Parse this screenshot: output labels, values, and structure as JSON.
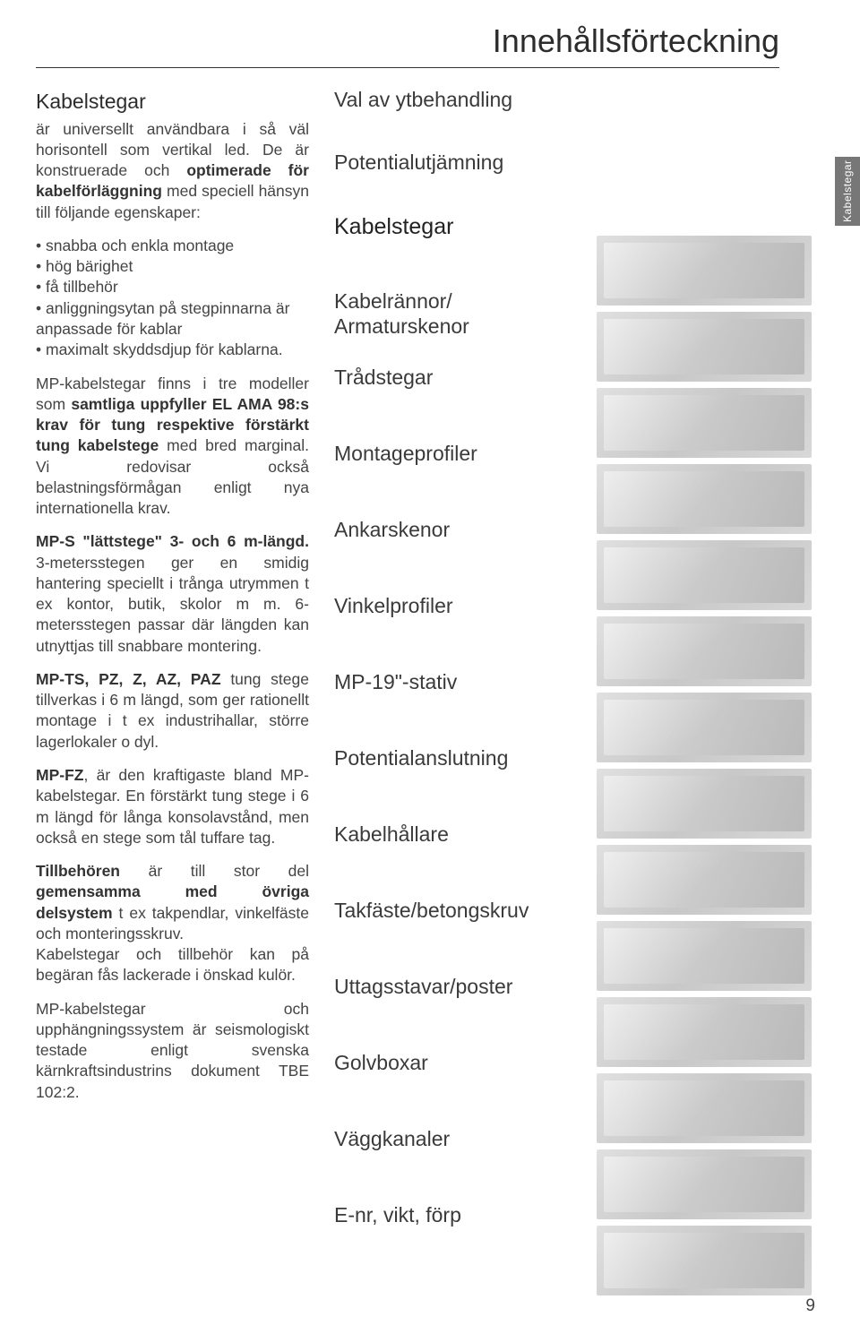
{
  "page": {
    "title": "Innehållsförteckning",
    "page_number": "9",
    "side_tab": "Kabelstegar"
  },
  "left": {
    "heading": "Kabelstegar",
    "intro_a": "är universellt användbara i så väl horisontell som vertikal led. De är konstruerade och ",
    "intro_bold1": "optimerade för kabelförläggning",
    "intro_b": " med speciell hänsyn till följande egenskaper:",
    "bullets": [
      "snabba och enkla montage",
      "hög bärighet",
      "få tillbehör",
      "anliggningsytan på stegpinnarna är anpassade för kablar",
      "maximalt skyddsdjup för kablarna."
    ],
    "p2_a": "MP-kabelstegar finns i tre modeller som ",
    "p2_b": "samtliga uppfyller EL AMA 98:s krav för tung respektive förstärkt tung kabelstege",
    "p2_c": " med bred marginal. Vi redovisar också belastningsförmågan enligt nya internationella krav.",
    "p3_a": "MP-S \"lättstege\" 3- och 6 m-längd.",
    "p3_b": " 3-metersstegen ger en smidig hantering speciellt i trånga utrymmen t ex kontor, butik, skolor m m. 6-metersstegen passar där längden kan utnyttjas till snabbare montering.",
    "p4_a": "MP-TS, PZ, Z, AZ, PAZ",
    "p4_b": " tung stege tillverkas i 6 m längd, som ger rationellt montage i t ex industrihallar, större lagerlokaler o dyl.",
    "p5_a": "MP-FZ",
    "p5_b": ", är den kraftigaste bland MP-kabelstegar. En förstärkt tung stege i 6 m längd för långa konsolavstånd, men också en stege som tål tuffare tag.",
    "p6_a": "Tillbehören",
    "p6_b": " är till stor del ",
    "p6_c": "gemensamma med övriga delsystem",
    "p6_d": " t ex takpendlar, vinkelfäste och monteringsskruv.",
    "p6_e": "Kabelstegar och tillbehör kan på begäran fås lackerade i önskad kulör.",
    "p7": "MP-kabelstegar och upphängningssystem är seismologiskt testade enligt svenska kärnkraftsindustrins dokument TBE 102:2."
  },
  "toc": [
    {
      "label": "Val av ytbehandling",
      "big": false
    },
    {
      "label": "Potentialutjämning",
      "big": false
    },
    {
      "label": "Kabelstegar",
      "big": true
    },
    {
      "label": "Kabelrännor/\nArmaturskenor",
      "big": false
    },
    {
      "label": "Trådstegar",
      "big": false
    },
    {
      "label": "Montageprofiler",
      "big": false
    },
    {
      "label": "Ankarskenor",
      "big": false
    },
    {
      "label": "Vinkelprofiler",
      "big": false
    },
    {
      "label": "MP-19\"-stativ",
      "big": false
    },
    {
      "label": "Potentialanslutning",
      "big": false
    },
    {
      "label": "Kabelhållare",
      "big": false
    },
    {
      "label": "Takfäste/betongskruv",
      "big": false
    },
    {
      "label": "Uttagsstavar/poster",
      "big": false
    },
    {
      "label": "Golvboxar",
      "big": false
    },
    {
      "label": "Väggkanaler",
      "big": false
    },
    {
      "label": "E-nr, vikt, förp",
      "big": false
    }
  ],
  "thumbs_count": 14,
  "colors": {
    "text": "#3a3a3a",
    "tab_bg": "#777777",
    "thumb_light": "#e0e0e0",
    "thumb_dark": "#c8c8c8"
  }
}
